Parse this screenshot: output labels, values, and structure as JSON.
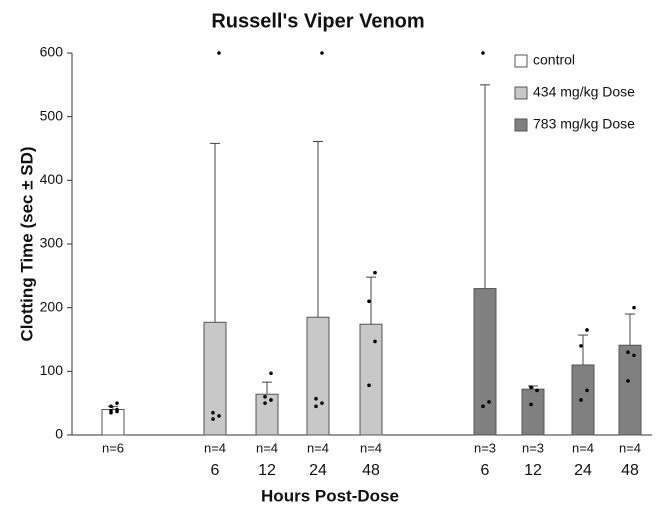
{
  "chart_data": {
    "type": "bar",
    "title": "Russell's Viper Venom",
    "x_label": "Hours Post-Dose",
    "y_label": "Clotting Time (sec ± SD)",
    "categories": [
      null,
      "6",
      "12",
      "24",
      "48",
      "6",
      "12",
      "24",
      "48"
    ],
    "n_labels": [
      "n=6",
      "n=4",
      "n=4",
      "n=4",
      "n=4",
      "n=3",
      "n=3",
      "n=4",
      "n=4"
    ],
    "series": [
      {
        "name": "control",
        "color": "#ffffff",
        "values": [
          40,
          null,
          null,
          null,
          null,
          null,
          null,
          null,
          null
        ],
        "errors": [
          5,
          null,
          null,
          null,
          null,
          null,
          null,
          null,
          null
        ],
        "points": [
          [
            35,
            37,
            38,
            40,
            45,
            50
          ],
          null,
          null,
          null,
          null,
          null,
          null,
          null,
          null
        ]
      },
      {
        "name": "434 mg/kg Dose",
        "color": "#c8c8c8",
        "values": [
          null,
          177,
          64,
          185,
          174,
          null,
          null,
          null,
          null
        ],
        "errors": [
          null,
          281,
          19,
          276,
          74,
          null,
          null,
          null,
          null
        ],
        "points": [
          null,
          [
            25,
            30,
            35,
            600
          ],
          [
            50,
            55,
            60,
            97
          ],
          [
            45,
            50,
            57,
            600
          ],
          [
            78,
            147,
            210,
            255
          ],
          null,
          null,
          null,
          null
        ]
      },
      {
        "name": "783 mg/kg Dose",
        "color": "#808080",
        "values": [
          null,
          null,
          null,
          null,
          null,
          230,
          72,
          110,
          141
        ],
        "errors": [
          null,
          null,
          null,
          null,
          null,
          320,
          5,
          47,
          49
        ],
        "points": [
          null,
          null,
          null,
          null,
          null,
          [
            45,
            52,
            600
          ],
          [
            48,
            70,
            75
          ],
          [
            55,
            70,
            140,
            165
          ],
          [
            85,
            125,
            130,
            200
          ]
        ]
      }
    ],
    "ylim": [
      0,
      600
    ],
    "yticks": [
      0,
      100,
      200,
      300,
      400,
      500,
      600
    ],
    "legend": "upper right"
  }
}
